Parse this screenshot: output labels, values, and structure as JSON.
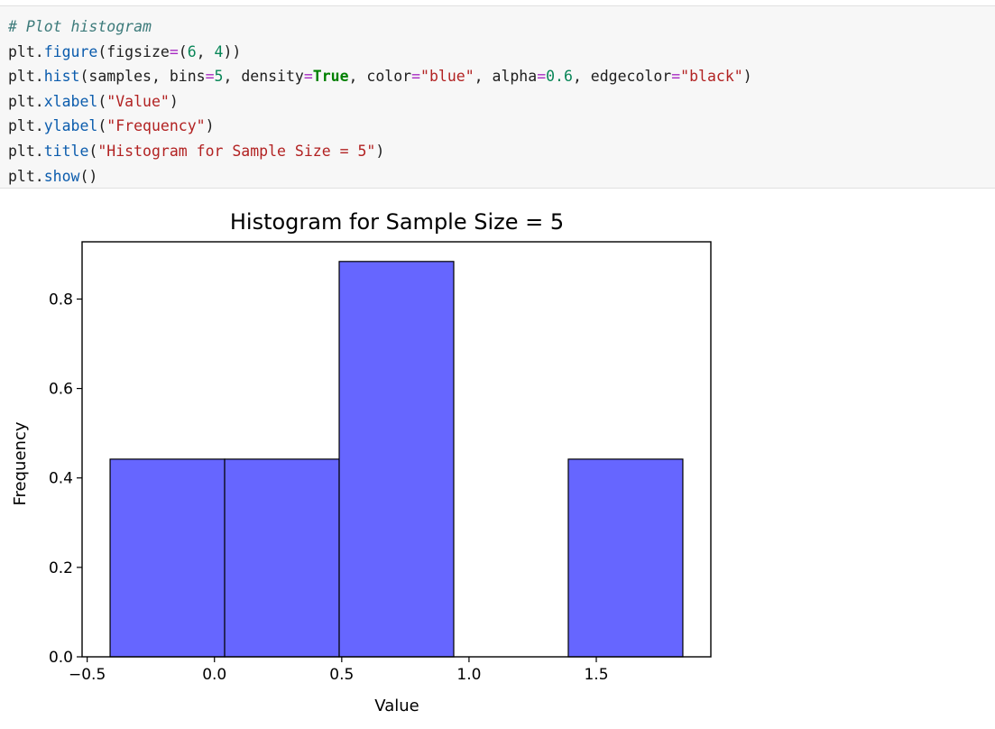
{
  "code_cell": {
    "lines": [
      [
        {
          "t": "# Plot histogram",
          "c": "comment"
        }
      ],
      [
        {
          "t": "plt."
        },
        {
          "t": "figure",
          "c": "attr"
        },
        {
          "t": "(figsize"
        },
        {
          "t": "=",
          "c": "op"
        },
        {
          "t": "("
        },
        {
          "t": "6",
          "c": "num"
        },
        {
          "t": ", "
        },
        {
          "t": "4",
          "c": "num"
        },
        {
          "t": "))"
        }
      ],
      [
        {
          "t": "plt."
        },
        {
          "t": "hist",
          "c": "attr"
        },
        {
          "t": "(samples, bins"
        },
        {
          "t": "=",
          "c": "op"
        },
        {
          "t": "5",
          "c": "num"
        },
        {
          "t": ", density"
        },
        {
          "t": "=",
          "c": "op"
        },
        {
          "t": "True",
          "c": "kw"
        },
        {
          "t": ", color"
        },
        {
          "t": "=",
          "c": "op"
        },
        {
          "t": "\"blue\"",
          "c": "str"
        },
        {
          "t": ", alpha"
        },
        {
          "t": "=",
          "c": "op"
        },
        {
          "t": "0.6",
          "c": "num"
        },
        {
          "t": ", edgecolor"
        },
        {
          "t": "=",
          "c": "op"
        },
        {
          "t": "\"black\"",
          "c": "str"
        },
        {
          "t": ")"
        }
      ],
      [
        {
          "t": "plt."
        },
        {
          "t": "xlabel",
          "c": "attr"
        },
        {
          "t": "("
        },
        {
          "t": "\"Value\"",
          "c": "str"
        },
        {
          "t": ")"
        }
      ],
      [
        {
          "t": "plt."
        },
        {
          "t": "ylabel",
          "c": "attr"
        },
        {
          "t": "("
        },
        {
          "t": "\"Frequency\"",
          "c": "str"
        },
        {
          "t": ")"
        }
      ],
      [
        {
          "t": "plt."
        },
        {
          "t": "title",
          "c": "attr"
        },
        {
          "t": "("
        },
        {
          "t": "\"Histogram for Sample Size = 5\"",
          "c": "str"
        },
        {
          "t": ")"
        }
      ],
      [
        {
          "t": "plt."
        },
        {
          "t": "show",
          "c": "attr"
        },
        {
          "t": "()"
        }
      ]
    ]
  },
  "chart_data": {
    "type": "bar",
    "title": "Histogram for Sample Size = 5",
    "xlabel": "Value",
    "ylabel": "Frequency",
    "bins": [
      {
        "x0": -0.41,
        "x1": 0.04,
        "value": 0.442
      },
      {
        "x0": 0.04,
        "x1": 0.49,
        "value": 0.442
      },
      {
        "x0": 0.49,
        "x1": 0.94,
        "value": 0.884
      },
      {
        "x0": 0.94,
        "x1": 1.39,
        "value": 0.0
      },
      {
        "x0": 1.39,
        "x1": 1.84,
        "value": 0.442
      }
    ],
    "xlim": [
      -0.52,
      1.95
    ],
    "ylim": [
      0,
      0.928
    ],
    "xticks": [
      -0.5,
      0.0,
      0.5,
      1.0,
      1.5
    ],
    "xtick_labels": [
      "−0.5",
      "0.0",
      "0.5",
      "1.0",
      "1.5"
    ],
    "yticks": [
      0.0,
      0.2,
      0.4,
      0.6,
      0.8
    ],
    "ytick_labels": [
      "0.0",
      "0.2",
      "0.4",
      "0.6",
      "0.8"
    ],
    "grid": false,
    "bar_color": "#6666ff",
    "edge_color": "#000000"
  }
}
